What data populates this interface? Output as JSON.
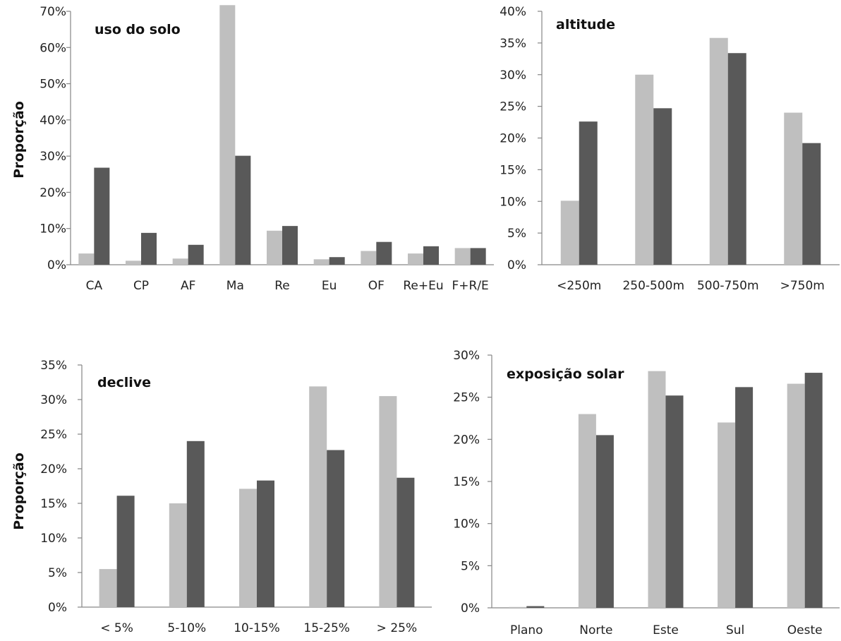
{
  "y_axis_label": "Proporção",
  "colors": {
    "series_light": "#bfbfbf",
    "series_dark": "#595959",
    "axis": "#868686"
  },
  "chart_data": [
    {
      "type": "bar",
      "title": "uso do solo",
      "ylabel": "Proporção",
      "ylim": [
        0,
        0.7
      ],
      "yticks": [
        0,
        0.1,
        0.2,
        0.3,
        0.4,
        0.5,
        0.6,
        0.7
      ],
      "ytick_labels": [
        "0%",
        "10%",
        "20%",
        "30%",
        "40%",
        "50%",
        "60%",
        "70%"
      ],
      "categories": [
        "CA",
        "CP",
        "AF",
        "Ma",
        "Re",
        "Eu",
        "OF",
        "Re+Eu",
        "F+R/E"
      ],
      "series": [
        {
          "values": [
            0.031,
            0.011,
            0.017,
            0.717,
            0.094,
            0.015,
            0.038,
            0.031,
            0.046
          ]
        },
        {
          "values": [
            0.268,
            0.088,
            0.055,
            0.301,
            0.107,
            0.021,
            0.063,
            0.051,
            0.046
          ]
        }
      ],
      "grid": false
    },
    {
      "type": "bar",
      "title": "altitude",
      "ylabel": "",
      "ylim": [
        0,
        0.4
      ],
      "yticks": [
        0,
        0.05,
        0.1,
        0.15,
        0.2,
        0.25,
        0.3,
        0.35,
        0.4
      ],
      "ytick_labels": [
        "0%",
        "5%",
        "10%",
        "15%",
        "20%",
        "25%",
        "30%",
        "35%",
        "40%"
      ],
      "categories": [
        "<250m",
        "250-500m",
        "500-750m",
        ">750m"
      ],
      "series": [
        {
          "values": [
            0.101,
            0.3,
            0.358,
            0.24
          ]
        },
        {
          "values": [
            0.226,
            0.247,
            0.334,
            0.192
          ]
        }
      ],
      "grid": false
    },
    {
      "type": "bar",
      "title": "declive",
      "ylabel": "Proporção",
      "ylim": [
        0,
        0.35
      ],
      "yticks": [
        0,
        0.05,
        0.1,
        0.15,
        0.2,
        0.25,
        0.3,
        0.35
      ],
      "ytick_labels": [
        "0%",
        "5%",
        "10%",
        "15%",
        "20%",
        "25%",
        "30%",
        "35%"
      ],
      "categories": [
        "< 5%",
        "5-10%",
        "10-15%",
        "15-25%",
        "> 25%"
      ],
      "series": [
        {
          "values": [
            0.055,
            0.15,
            0.171,
            0.319,
            0.305
          ]
        },
        {
          "values": [
            0.161,
            0.24,
            0.183,
            0.227,
            0.187
          ]
        }
      ],
      "grid": false
    },
    {
      "type": "bar",
      "title": "exposição solar",
      "ylabel": "",
      "ylim": [
        0,
        0.3
      ],
      "yticks": [
        0,
        0.05,
        0.1,
        0.15,
        0.2,
        0.25,
        0.3
      ],
      "ytick_labels": [
        "0%",
        "5%",
        "10%",
        "15%",
        "20%",
        "25%",
        "30%"
      ],
      "categories": [
        "Plano",
        "Norte",
        "Este",
        "Sul",
        "Oeste"
      ],
      "series": [
        {
          "values": [
            0.001,
            0.23,
            0.281,
            0.22,
            0.266
          ]
        },
        {
          "values": [
            0.002,
            0.205,
            0.252,
            0.262,
            0.279
          ]
        }
      ],
      "grid": false
    }
  ]
}
